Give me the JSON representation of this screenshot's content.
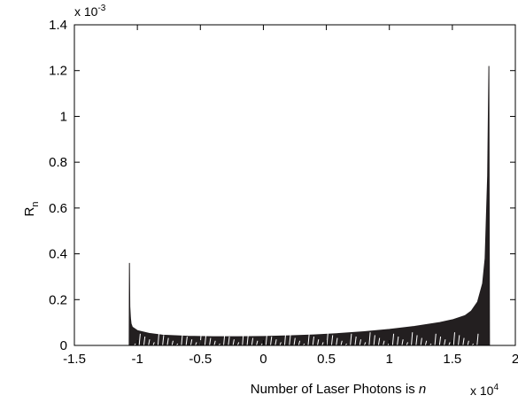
{
  "chart_data": {
    "type": "area",
    "title": "",
    "xlabel": "Number of Laser Photons is n",
    "xlabel_text": "Number of Laser Photons is ",
    "xlabel_var": "n",
    "ylabel": "R_n",
    "ylabel_main": "R",
    "ylabel_sub": "n",
    "xlim": [
      -1.5,
      2
    ],
    "ylim": [
      0,
      1.4
    ],
    "x_multiplier": "x 10",
    "x_multiplier_exp": "4",
    "y_multiplier": "x 10",
    "y_multiplier_exp": "-3",
    "xticks": [
      -1.5,
      -1,
      -0.5,
      0,
      0.5,
      1,
      1.5,
      2
    ],
    "xtick_labels": [
      "-1.5",
      "-1",
      "-0.5",
      "0",
      "0.5",
      "1",
      "1.5",
      "2"
    ],
    "yticks": [
      0,
      0.2,
      0.4,
      0.6,
      0.8,
      1,
      1.2,
      1.4
    ],
    "ytick_labels": [
      "0",
      "0.2",
      "0.4",
      "0.6",
      "0.8",
      "1",
      "1.2",
      "1.4"
    ],
    "grid": false,
    "series": [
      {
        "color": "#231f20",
        "x": [
          -1.065,
          -1.063,
          -1.06,
          -1.055,
          -1.05,
          -1.04,
          -1.0,
          -0.9,
          -0.8,
          -0.6,
          -0.4,
          -0.2,
          0,
          0.2,
          0.4,
          0.6,
          0.8,
          1.0,
          1.2,
          1.4,
          1.5,
          1.6,
          1.65,
          1.7,
          1.74,
          1.76,
          1.78,
          1.79,
          1.795
        ],
        "y": [
          0.02,
          0.36,
          0.17,
          0.12,
          0.095,
          0.08,
          0.065,
          0.052,
          0.045,
          0.04,
          0.038,
          0.038,
          0.039,
          0.042,
          0.046,
          0.052,
          0.06,
          0.07,
          0.083,
          0.1,
          0.112,
          0.13,
          0.15,
          0.19,
          0.27,
          0.38,
          0.74,
          1.22,
          0.02
        ]
      }
    ]
  }
}
